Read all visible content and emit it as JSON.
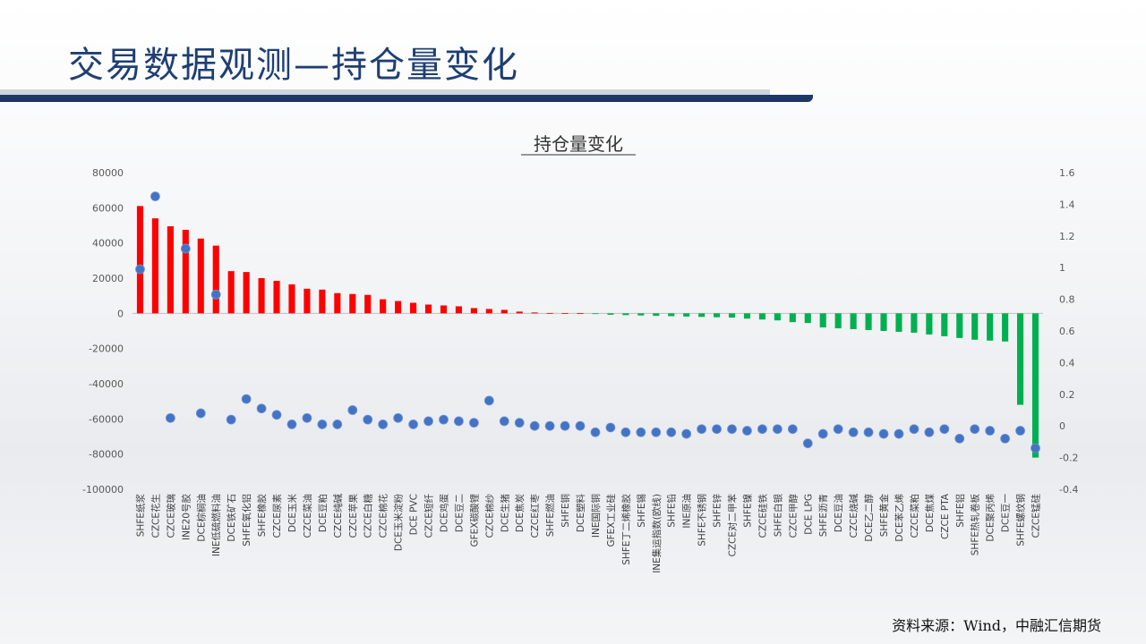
{
  "slide": {
    "title": "交易数据观测—持仓量变化",
    "source": "资料来源：Wind，中融汇信期货"
  },
  "colors": {
    "title": "#1f3f73",
    "positive_bar": "#ff0000",
    "negative_bar": "#00b050",
    "dot": "#4472c4"
  },
  "chart_data": {
    "type": "bar",
    "title": "持仓量变化",
    "left_axis": {
      "ylim": [
        -100000,
        80000
      ],
      "ticks": [
        80000,
        60000,
        40000,
        20000,
        0,
        -20000,
        -40000,
        -60000,
        -80000,
        -100000
      ]
    },
    "right_axis": {
      "ylim": [
        -0.4,
        1.6
      ],
      "ticks": [
        "1.6",
        "1.4",
        "1.2",
        "1",
        "0.8",
        "0.6",
        "0.4",
        "0.2",
        "0",
        "-0.2",
        "-0.4"
      ]
    },
    "grid": false,
    "legend": "none",
    "categories": [
      "SHFE纸浆",
      "CZCE花生",
      "CZCE玻璃",
      "INE20号胶",
      "DCE棕榈油",
      "INE低硫燃料油",
      "DCE铁矿石",
      "SHFE氧化铝",
      "SHFE橡胶",
      "CZCE尿素",
      "DCE玉米",
      "CZCE菜油",
      "DCE豆粕",
      "CZCE纯碱",
      "CZCE苹果",
      "CZCE白糖",
      "CZCE棉花",
      "DCE玉米淀粉",
      "DCE PVC",
      "CZCE短纤",
      "DCE鸡蛋",
      "DCE豆二",
      "GFEX碳酸锂",
      "CZCE棉纱",
      "DCE生猪",
      "DCE焦炭",
      "CZCE红枣",
      "SHFE燃油",
      "SHFE铜",
      "DCE塑料",
      "INE国际铜",
      "GFEX工业硅",
      "SHFE丁二烯橡胶",
      "SHFE锡",
      "INE集运指数(欧线)",
      "SHFE铅",
      "INE原油",
      "SHFE不锈钢",
      "SHFE锌",
      "CZCE对二甲苯",
      "SHFE镍",
      "CZCE硅铁",
      "SHFE白银",
      "CZCE甲醇",
      "DCE LPG",
      "SHFE沥青",
      "DCE豆油",
      "CZCE烧碱",
      "DCE乙二醇",
      "SHFE黄金",
      "DCE苯乙烯",
      "CZCE菜粕",
      "DCE焦煤",
      "CZCE PTA",
      "SHFE铝",
      "SHFE热轧卷板",
      "DCE聚丙烯",
      "DCE豆一",
      "SHFE螺纹钢",
      "CZCE锰硅"
    ],
    "series": [
      {
        "axis": "left",
        "values": [
          61000,
          54000,
          49500,
          47500,
          42500,
          38500,
          24000,
          23500,
          20000,
          18500,
          16500,
          14000,
          13500,
          11500,
          11000,
          10500,
          8000,
          7000,
          6000,
          5000,
          4500,
          4000,
          3000,
          2500,
          2000,
          1000,
          500,
          200,
          100,
          50,
          -300,
          -800,
          -1000,
          -1200,
          -1400,
          -1600,
          -1800,
          -2000,
          -2200,
          -2400,
          -3000,
          -3500,
          -4000,
          -5000,
          -5500,
          -8000,
          -8500,
          -9000,
          -9500,
          -10000,
          -10500,
          -11000,
          -12000,
          -13000,
          -14000,
          -15000,
          -15500,
          -16000,
          -52000,
          -82000
        ]
      },
      {
        "axis": "right",
        "values": [
          0.99,
          1.45,
          0.05,
          1.12,
          0.08,
          0.83,
          0.04,
          0.17,
          0.11,
          0.07,
          0.01,
          0.05,
          0.01,
          0.01,
          0.1,
          0.04,
          0.01,
          0.05,
          0.01,
          0.03,
          0.04,
          0.03,
          0.02,
          0.16,
          0.03,
          0.02,
          0.0,
          0.0,
          0.0,
          0.0,
          -0.04,
          -0.01,
          -0.04,
          -0.04,
          -0.04,
          -0.04,
          -0.05,
          -0.02,
          -0.02,
          -0.02,
          -0.03,
          -0.02,
          -0.02,
          -0.02,
          -0.11,
          -0.05,
          -0.02,
          -0.04,
          -0.04,
          -0.05,
          -0.05,
          -0.02,
          -0.04,
          -0.02,
          -0.08,
          -0.02,
          -0.03,
          -0.08,
          -0.03,
          -0.14
        ]
      }
    ]
  }
}
